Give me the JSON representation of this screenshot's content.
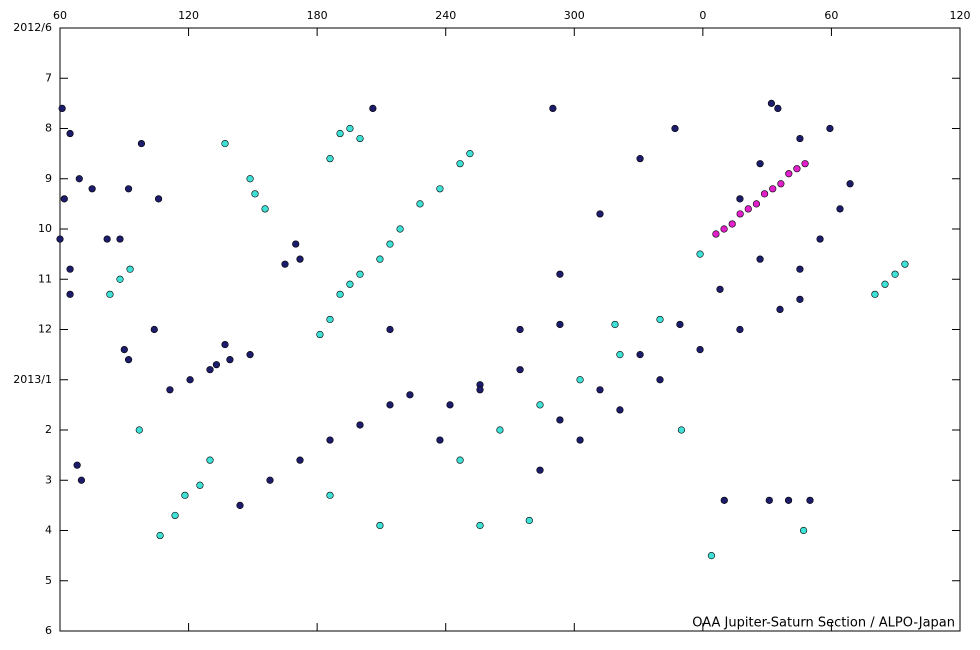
{
  "chart_data": {
    "type": "scatter",
    "annotation": "OAA Jupiter-Saturn Section / ALPO-Japan",
    "xlim": [
      60,
      480
    ],
    "xticks": [
      60,
      120,
      180,
      240,
      300,
      {
        "value": 360,
        "label": "0"
      },
      {
        "value": 420,
        "label": "60"
      },
      {
        "value": 480,
        "label": "120"
      }
    ],
    "ylim": [
      0,
      12
    ],
    "y_inverted": true,
    "yticks": [
      {
        "value": 0,
        "label": "2012/6"
      },
      {
        "value": 1,
        "label": "7"
      },
      {
        "value": 2,
        "label": "8"
      },
      {
        "value": 3,
        "label": "9"
      },
      {
        "value": 4,
        "label": "10"
      },
      {
        "value": 5,
        "label": "11"
      },
      {
        "value": 6,
        "label": "12"
      },
      {
        "value": 7,
        "label": "2013/1"
      },
      {
        "value": 8,
        "label": "2"
      },
      {
        "value": 9,
        "label": "3"
      },
      {
        "value": 10,
        "label": "4"
      },
      {
        "value": 11,
        "label": "5"
      },
      {
        "value": 12,
        "label": "6"
      }
    ],
    "series": [
      {
        "color": "#1c1c6b",
        "x": [
          144,
          158,
          172,
          186,
          200,
          214,
          223.3,
          237.3,
          256,
          274.7,
          293.3,
          312,
          330.7,
          284,
          302.7,
          321.3,
          340,
          358.7,
          377.3,
          396,
          405.3,
          293.3,
          312,
          330.7,
          349.3,
          368,
          386.7,
          377.3,
          386.7,
          405.3,
          419.3,
          405.3,
          414.7,
          424,
          428.7,
          111.3,
          120.7,
          130,
          139.3,
          148.7,
          242,
          256,
          274.7,
          293.3,
          370,
          391,
          400,
          410,
          61,
          64.7,
          62,
          60,
          64.7,
          64.7,
          69,
          75,
          68,
          70,
          82,
          88,
          90,
          92,
          92,
          133,
          137,
          104,
          98,
          106,
          214,
          170,
          172,
          165,
          206,
          290,
          347,
          392,
          395
        ],
        "values": [
          9.5,
          9.0,
          8.6,
          8.2,
          7.9,
          7.5,
          7.3,
          8.2,
          7.1,
          6.0,
          4.9,
          3.7,
          2.6,
          8.8,
          8.2,
          7.6,
          7.0,
          6.4,
          6.0,
          5.6,
          5.4,
          7.8,
          7.2,
          6.5,
          5.9,
          5.2,
          4.6,
          3.4,
          2.7,
          2.2,
          2.0,
          4.8,
          4.2,
          3.6,
          3.1,
          7.2,
          7.0,
          6.8,
          6.6,
          6.5,
          7.5,
          7.2,
          6.8,
          5.9,
          9.4,
          9.4,
          9.4,
          9.4,
          1.6,
          2.1,
          3.4,
          4.2,
          4.8,
          5.3,
          3.0,
          3.2,
          8.7,
          9.0,
          4.2,
          4.2,
          6.4,
          6.6,
          3.2,
          6.7,
          6.3,
          6.0,
          2.3,
          3.4,
          6.0,
          4.3,
          4.6,
          4.7,
          1.6,
          1.6,
          2.0,
          1.5,
          1.6
        ]
      },
      {
        "color": "#3fe0d6",
        "x": [
          106.7,
          113.7,
          118.3,
          125.3,
          130,
          181.3,
          186,
          190.7,
          195.3,
          200,
          209.3,
          214,
          218.7,
          228,
          237.3,
          246.7,
          251.3,
          246.7,
          265.3,
          284,
          302.7,
          321.3,
          340,
          358.7,
          137,
          148.7,
          151,
          155.7,
          186,
          190.7,
          195.3,
          200,
          440.3,
          445,
          449.7,
          454.3,
          83.3,
          88,
          92.7,
          186,
          209.3,
          256,
          279,
          319,
          364,
          407,
          350,
          97
        ],
        "values": [
          10.1,
          9.7,
          9.3,
          9.1,
          8.6,
          6.1,
          5.8,
          5.3,
          5.1,
          4.9,
          4.6,
          4.3,
          4.0,
          3.5,
          3.2,
          2.7,
          2.5,
          8.6,
          8.0,
          7.5,
          7.0,
          6.5,
          5.8,
          4.5,
          2.3,
          3.0,
          3.3,
          3.6,
          2.6,
          2.1,
          2.0,
          2.2,
          5.3,
          5.1,
          4.9,
          4.7,
          5.3,
          5.0,
          4.8,
          9.3,
          9.9,
          9.9,
          9.8,
          5.9,
          10.5,
          10.0,
          8.0,
          8.0
        ]
      },
      {
        "color": "#e020c8",
        "x": [
          366.1,
          369.9,
          373.7,
          377.4,
          381.2,
          385,
          388.8,
          392.6,
          396.4,
          400.1,
          403.9,
          407.7
        ],
        "values": [
          4.1,
          4.0,
          3.9,
          3.7,
          3.6,
          3.5,
          3.3,
          3.2,
          3.1,
          2.9,
          2.8,
          2.7
        ]
      }
    ]
  }
}
